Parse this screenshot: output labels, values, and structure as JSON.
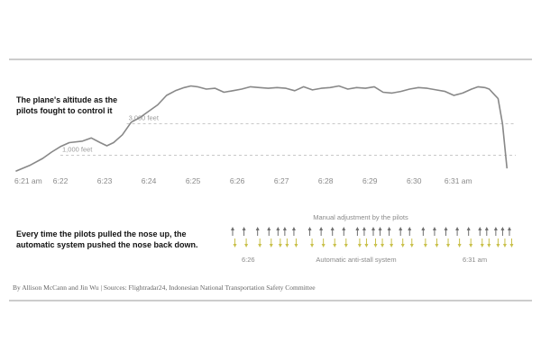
{
  "chart_data": {
    "type": "line",
    "title_lines": [
      "The plane's altitude as the",
      "pilots fought to control it"
    ],
    "reference_lines": [
      {
        "label": "3,000 feet",
        "value": 3000
      },
      {
        "label": "1,000 feet",
        "value": 1000
      }
    ],
    "x_ticks": [
      "6:21 am",
      "6:22",
      "6:23",
      "6:24",
      "6:25",
      "6:26",
      "6:27",
      "6:28",
      "6:29",
      "6:30",
      "6:31 am"
    ],
    "x_range": [
      0,
      11.3
    ],
    "y_range": [
      0,
      5600
    ],
    "x_unit": "minutes after 6:21 am",
    "y_unit": "feet",
    "series": [
      {
        "x": [
          0,
          0.3,
          0.6,
          0.8,
          1.0,
          1.2,
          1.5,
          1.7,
          1.9,
          2.05,
          2.2,
          2.4,
          2.6,
          2.8,
          3.0,
          3.2,
          3.4,
          3.6,
          3.8,
          3.95,
          4.1,
          4.3,
          4.5,
          4.7,
          4.9,
          5.1,
          5.3,
          5.5,
          5.7,
          5.9,
          6.1,
          6.3,
          6.5,
          6.7,
          6.9,
          7.1,
          7.3,
          7.5,
          7.7,
          7.9,
          8.1,
          8.3,
          8.5,
          8.7,
          8.9,
          9.1,
          9.3,
          9.5,
          9.7,
          9.9,
          10.1,
          10.3,
          10.45,
          10.6,
          10.7,
          10.8,
          10.9,
          11.0,
          11.1
        ],
        "y": [
          0,
          350,
          800,
          1200,
          1550,
          1800,
          1900,
          2100,
          1800,
          1600,
          1800,
          2300,
          3100,
          3400,
          3800,
          4200,
          4800,
          5100,
          5300,
          5400,
          5350,
          5200,
          5250,
          5000,
          5100,
          5200,
          5350,
          5300,
          5250,
          5300,
          5250,
          5100,
          5350,
          5150,
          5250,
          5300,
          5400,
          5200,
          5300,
          5250,
          5350,
          5000,
          4950,
          5050,
          5200,
          5300,
          5250,
          5150,
          5050,
          4800,
          4950,
          5200,
          5350,
          5300,
          5200,
          4900,
          4600,
          3000,
          200
        ]
      }
    ]
  },
  "adjustments": {
    "label_top": "Manual adjustment by the pilots",
    "label_bottom": "Automatic anti-stall system",
    "tick_left": "6:26",
    "tick_right": "6:31 am",
    "caption_lines": [
      "Every time the pilots pulled the nose up, the",
      "automatic system pushed the nose back down."
    ],
    "up_arrow_positions": [
      0.0,
      0.25,
      0.55,
      0.8,
      1.0,
      1.15,
      1.35,
      1.7,
      1.95,
      2.2,
      2.45,
      2.75,
      2.9,
      3.1,
      3.25,
      3.45,
      3.7,
      3.9,
      4.2,
      4.45,
      4.7,
      4.95,
      5.2,
      5.45,
      5.6,
      5.8,
      5.95,
      6.1
    ],
    "down_arrow_positions": [
      0.05,
      0.3,
      0.6,
      0.85,
      1.05,
      1.2,
      1.4,
      1.75,
      2.0,
      2.25,
      2.5,
      2.8,
      2.95,
      3.15,
      3.3,
      3.5,
      3.75,
      3.95,
      4.25,
      4.5,
      4.75,
      5.0,
      5.25,
      5.5,
      5.65,
      5.85,
      6.0,
      6.15
    ],
    "up_color": "#6e6e6e",
    "down_color": "#c9c04a"
  },
  "credit": "By Allison McCann and Jin Wu | Sources: Flightradar24, Indonesian National Transportation Safety Committee"
}
